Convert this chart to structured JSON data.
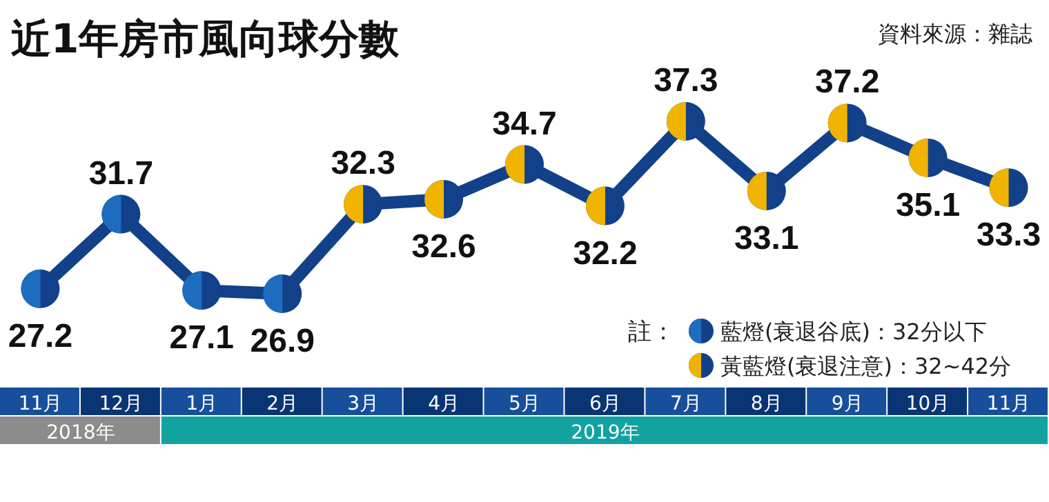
{
  "chart_data": {
    "type": "line",
    "title": "近1年房市風向球分數",
    "categories": [
      "11月",
      "12月",
      "1月",
      "2月",
      "3月",
      "4月",
      "5月",
      "6月",
      "7月",
      "8月",
      "9月",
      "10月",
      "11月"
    ],
    "values": [
      27.2,
      31.7,
      27.1,
      26.9,
      32.3,
      32.6,
      34.7,
      32.2,
      37.3,
      33.1,
      37.2,
      35.1,
      33.3
    ],
    "color": "#12418a",
    "colors": [
      "#1d6cc0",
      "#1d6cc0",
      "#1d6cc0",
      "#1d6cc0",
      "#f0b400",
      "#f0b400",
      "#f0b400",
      "#f0b400",
      "#f0b400",
      "#f0b400",
      "#f0b400",
      "#f0b400",
      "#f0b400"
    ],
    "marker": "circle",
    "data_labels": true,
    "annotations": [
      "資料來源：雜誌",
      "註：",
      "藍燈(衰退谷底)：32分以下",
      "黃藍燈(衰退注意)：32~42分",
      "2018年",
      "2019年"
    ]
  }
}
